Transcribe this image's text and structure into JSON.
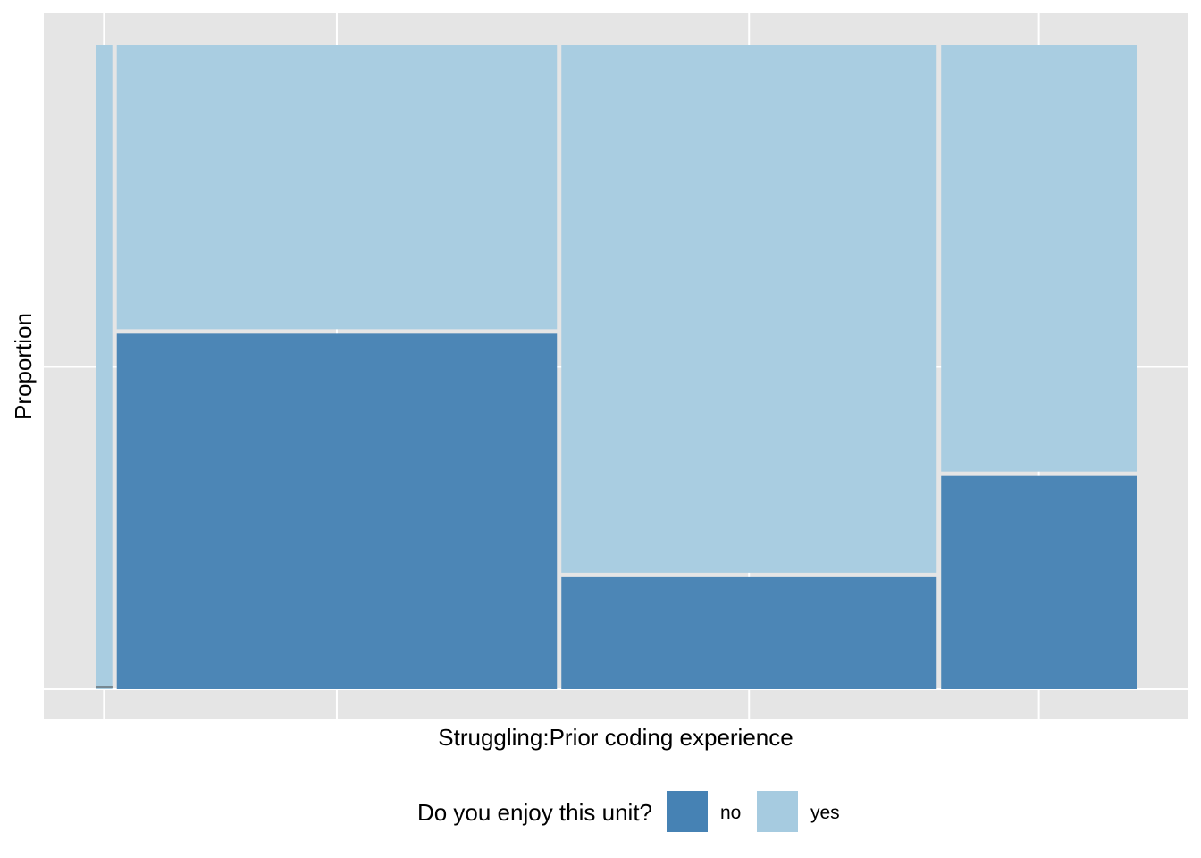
{
  "chart_data": {
    "type": "mosaic",
    "title": "",
    "xlabel": "Struggling:Prior coding experience",
    "ylabel": "Proportion",
    "ylim": [
      0,
      1
    ],
    "grid": true,
    "legend": {
      "title": "Do you enjoy this unit?",
      "position": "bottom",
      "entries": [
        "no",
        "yes"
      ]
    },
    "fill_levels": [
      "no",
      "yes"
    ],
    "colors": {
      "no": "#4682B4",
      "yes": "#A6CBE0",
      "panel": "#E5E5E5",
      "grid": "#FFFFFF"
    },
    "columns": [
      {
        "width_share": 0.016,
        "proportions": {
          "no": 0.0,
          "yes": 1.0
        }
      },
      {
        "width_share": 0.421,
        "proportions": {
          "no": 0.555,
          "yes": 0.445
        }
      },
      {
        "width_share": 0.359,
        "proportions": {
          "no": 0.177,
          "yes": 0.823
        }
      },
      {
        "width_share": 0.187,
        "proportions": {
          "no": 0.334,
          "yes": 0.666
        }
      }
    ]
  }
}
